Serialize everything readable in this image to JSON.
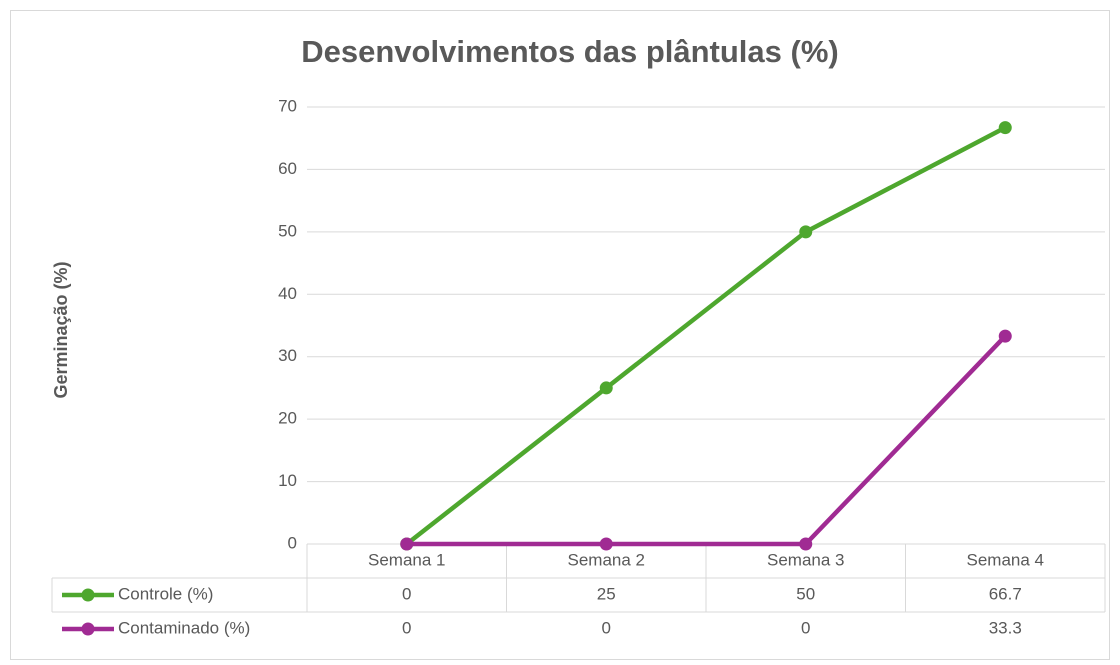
{
  "chart_data": {
    "type": "line",
    "title": "Desenvolvimentos das plântulas (%)",
    "y_label": "Germinação (%)",
    "categories": [
      "Semana 1",
      "Semana 2",
      "Semana 3",
      "Semana 4"
    ],
    "series": [
      {
        "name": "Controle (%)",
        "color": "#4ea72e",
        "values": [
          0,
          25,
          50,
          66.7
        ]
      },
      {
        "name": "Contaminado (%)",
        "color": "#a02b93",
        "values": [
          0,
          0,
          0,
          33.3
        ]
      }
    ],
    "ylim": [
      0,
      70
    ],
    "yticks": [
      0,
      10,
      20,
      30,
      40,
      50,
      60,
      70
    ],
    "grid": true,
    "data_table": true
  }
}
